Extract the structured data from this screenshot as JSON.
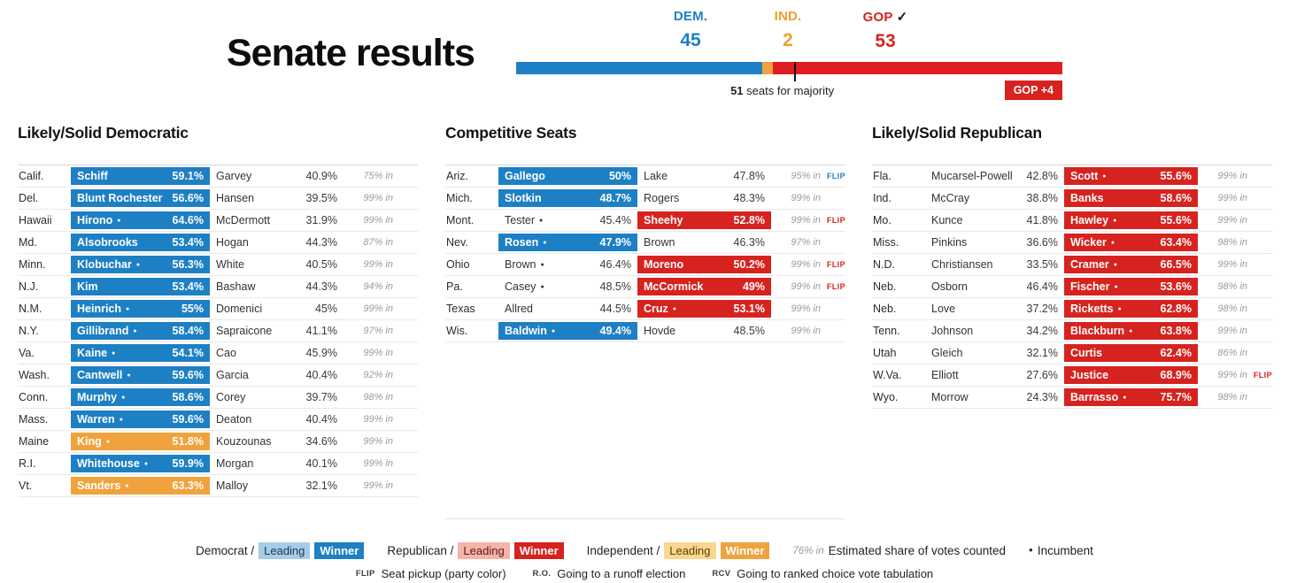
{
  "header": {
    "title": "Senate results",
    "parties": [
      {
        "id": "dem",
        "label": "DEM.",
        "seats": "45"
      },
      {
        "id": "ind",
        "label": "IND.",
        "seats": "2"
      },
      {
        "id": "gop",
        "label": "GOP",
        "seats": "53"
      }
    ],
    "majority": {
      "bold": "51",
      "rest": " seats for majority"
    },
    "net_badge": "GOP +4"
  },
  "icons": {
    "incumbent_dot": "●",
    "winner_check": "✓"
  },
  "colors": {
    "dem": "#1e80c4",
    "ind": "#f0a33c",
    "gop": "#d6231f",
    "dem_light": "#a7cce8",
    "ind_light": "#f9d78e",
    "gop_light": "#f4b4aa"
  },
  "chart_data": {
    "type": "bar",
    "title": "Senate seats by party",
    "categories": [
      "DEM.",
      "IND.",
      "GOP"
    ],
    "values": [
      45,
      2,
      53
    ],
    "majority_threshold": 51,
    "annotations": [
      "51 seats for majority",
      "GOP +4"
    ],
    "colors": {
      "DEM.": "#1e80c4",
      "IND.": "#f0a33c",
      "GOP": "#d6231f"
    }
  },
  "tables": [
    {
      "title": "Likely/Solid Democratic",
      "rows": [
        {
          "state": "Calif.",
          "cands": [
            {
              "name": "Schiff",
              "pct": "59.1%",
              "fill": "dem"
            },
            {
              "name": "Garvey",
              "pct": "40.9%"
            }
          ],
          "reporting": "75% in"
        },
        {
          "state": "Del.",
          "cands": [
            {
              "name": "Blunt Rochester",
              "pct": "56.6%",
              "fill": "dem"
            },
            {
              "name": "Hansen",
              "pct": "39.5%"
            }
          ],
          "reporting": "99% in"
        },
        {
          "state": "Hawaii",
          "cands": [
            {
              "name": "Hirono",
              "inc": true,
              "pct": "64.6%",
              "fill": "dem"
            },
            {
              "name": "McDermott",
              "pct": "31.9%"
            }
          ],
          "reporting": "99% in"
        },
        {
          "state": "Md.",
          "cands": [
            {
              "name": "Alsobrooks",
              "pct": "53.4%",
              "fill": "dem"
            },
            {
              "name": "Hogan",
              "pct": "44.3%"
            }
          ],
          "reporting": "87% in"
        },
        {
          "state": "Minn.",
          "cands": [
            {
              "name": "Klobuchar",
              "inc": true,
              "pct": "56.3%",
              "fill": "dem"
            },
            {
              "name": "White",
              "pct": "40.5%"
            }
          ],
          "reporting": "99% in"
        },
        {
          "state": "N.J.",
          "cands": [
            {
              "name": "Kim",
              "pct": "53.4%",
              "fill": "dem"
            },
            {
              "name": "Bashaw",
              "pct": "44.3%"
            }
          ],
          "reporting": "94% in"
        },
        {
          "state": "N.M.",
          "cands": [
            {
              "name": "Heinrich",
              "inc": true,
              "pct": "55%",
              "fill": "dem"
            },
            {
              "name": "Domenici",
              "pct": "45%"
            }
          ],
          "reporting": "99% in"
        },
        {
          "state": "N.Y.",
          "cands": [
            {
              "name": "Gillibrand",
              "inc": true,
              "pct": "58.4%",
              "fill": "dem"
            },
            {
              "name": "Sapraicone",
              "pct": "41.1%"
            }
          ],
          "reporting": "97% in"
        },
        {
          "state": "Va.",
          "cands": [
            {
              "name": "Kaine",
              "inc": true,
              "pct": "54.1%",
              "fill": "dem"
            },
            {
              "name": "Cao",
              "pct": "45.9%"
            }
          ],
          "reporting": "99% in"
        },
        {
          "state": "Wash.",
          "cands": [
            {
              "name": "Cantwell",
              "inc": true,
              "pct": "59.6%",
              "fill": "dem"
            },
            {
              "name": "Garcia",
              "pct": "40.4%"
            }
          ],
          "reporting": "92% in"
        },
        {
          "state": "Conn.",
          "cands": [
            {
              "name": "Murphy",
              "inc": true,
              "pct": "58.6%",
              "fill": "dem"
            },
            {
              "name": "Corey",
              "pct": "39.7%"
            }
          ],
          "reporting": "98% in"
        },
        {
          "state": "Mass.",
          "cands": [
            {
              "name": "Warren",
              "inc": true,
              "pct": "59.6%",
              "fill": "dem"
            },
            {
              "name": "Deaton",
              "pct": "40.4%"
            }
          ],
          "reporting": "99% in"
        },
        {
          "state": "Maine",
          "cands": [
            {
              "name": "King",
              "inc": true,
              "pct": "51.8%",
              "fill": "ind"
            },
            {
              "name": "Kouzounas",
              "pct": "34.6%"
            }
          ],
          "reporting": "99% in"
        },
        {
          "state": "R.I.",
          "cands": [
            {
              "name": "Whitehouse",
              "inc": true,
              "pct": "59.9%",
              "fill": "dem"
            },
            {
              "name": "Morgan",
              "pct": "40.1%"
            }
          ],
          "reporting": "99% in"
        },
        {
          "state": "Vt.",
          "cands": [
            {
              "name": "Sanders",
              "inc": true,
              "pct": "63.3%",
              "fill": "ind"
            },
            {
              "name": "Malloy",
              "pct": "32.1%"
            }
          ],
          "reporting": "99% in"
        }
      ]
    },
    {
      "title": "Competitive Seats",
      "rows": [
        {
          "state": "Ariz.",
          "cands": [
            {
              "name": "Gallego",
              "pct": "50%",
              "fill": "dem"
            },
            {
              "name": "Lake",
              "pct": "47.8%"
            }
          ],
          "reporting": "95% in",
          "flip": "dem"
        },
        {
          "state": "Mich.",
          "cands": [
            {
              "name": "Slotkin",
              "pct": "48.7%",
              "fill": "dem"
            },
            {
              "name": "Rogers",
              "pct": "48.3%"
            }
          ],
          "reporting": "99% in"
        },
        {
          "state": "Mont.",
          "cands": [
            {
              "name": "Tester",
              "inc": true,
              "pct": "45.4%"
            },
            {
              "name": "Sheehy",
              "pct": "52.8%",
              "fill": "gop"
            }
          ],
          "reporting": "99% in",
          "flip": "gop"
        },
        {
          "state": "Nev.",
          "cands": [
            {
              "name": "Rosen",
              "inc": true,
              "pct": "47.9%",
              "fill": "dem"
            },
            {
              "name": "Brown",
              "pct": "46.3%"
            }
          ],
          "reporting": "97% in"
        },
        {
          "state": "Ohio",
          "cands": [
            {
              "name": "Brown",
              "inc": true,
              "pct": "46.4%"
            },
            {
              "name": "Moreno",
              "pct": "50.2%",
              "fill": "gop"
            }
          ],
          "reporting": "99% in",
          "flip": "gop"
        },
        {
          "state": "Pa.",
          "cands": [
            {
              "name": "Casey",
              "inc": true,
              "pct": "48.5%"
            },
            {
              "name": "McCormick",
              "pct": "49%",
              "fill": "gop"
            }
          ],
          "reporting": "99% in",
          "flip": "gop"
        },
        {
          "state": "Texas",
          "cands": [
            {
              "name": "Allred",
              "pct": "44.5%"
            },
            {
              "name": "Cruz",
              "inc": true,
              "pct": "53.1%",
              "fill": "gop"
            }
          ],
          "reporting": "99% in"
        },
        {
          "state": "Wis.",
          "cands": [
            {
              "name": "Baldwin",
              "inc": true,
              "pct": "49.4%",
              "fill": "dem"
            },
            {
              "name": "Hovde",
              "pct": "48.5%"
            }
          ],
          "reporting": "99% in"
        }
      ]
    },
    {
      "title": "Likely/Solid Republican",
      "rows": [
        {
          "state": "Fla.",
          "cands": [
            {
              "name": "Mucarsel-Powell",
              "pct": "42.8%"
            },
            {
              "name": "Scott",
              "inc": true,
              "pct": "55.6%",
              "fill": "gop"
            }
          ],
          "reporting": "99% in"
        },
        {
          "state": "Ind.",
          "cands": [
            {
              "name": "McCray",
              "pct": "38.8%"
            },
            {
              "name": "Banks",
              "pct": "58.6%",
              "fill": "gop"
            }
          ],
          "reporting": "99% in"
        },
        {
          "state": "Mo.",
          "cands": [
            {
              "name": "Kunce",
              "pct": "41.8%"
            },
            {
              "name": "Hawley",
              "inc": true,
              "pct": "55.6%",
              "fill": "gop"
            }
          ],
          "reporting": "99% in"
        },
        {
          "state": "Miss.",
          "cands": [
            {
              "name": "Pinkins",
              "pct": "36.6%"
            },
            {
              "name": "Wicker",
              "inc": true,
              "pct": "63.4%",
              "fill": "gop"
            }
          ],
          "reporting": "98% in"
        },
        {
          "state": "N.D.",
          "cands": [
            {
              "name": "Christiansen",
              "pct": "33.5%"
            },
            {
              "name": "Cramer",
              "inc": true,
              "pct": "66.5%",
              "fill": "gop"
            }
          ],
          "reporting": "99% in"
        },
        {
          "state": "Neb.",
          "cands": [
            {
              "name": "Osborn",
              "pct": "46.4%"
            },
            {
              "name": "Fischer",
              "inc": true,
              "pct": "53.6%",
              "fill": "gop"
            }
          ],
          "reporting": "98% in"
        },
        {
          "state": "Neb.",
          "cands": [
            {
              "name": "Love",
              "pct": "37.2%"
            },
            {
              "name": "Ricketts",
              "inc": true,
              "pct": "62.8%",
              "fill": "gop"
            }
          ],
          "reporting": "98% in"
        },
        {
          "state": "Tenn.",
          "cands": [
            {
              "name": "Johnson",
              "pct": "34.2%"
            },
            {
              "name": "Blackburn",
              "inc": true,
              "pct": "63.8%",
              "fill": "gop"
            }
          ],
          "reporting": "99% in"
        },
        {
          "state": "Utah",
          "cands": [
            {
              "name": "Gleich",
              "pct": "32.1%"
            },
            {
              "name": "Curtis",
              "pct": "62.4%",
              "fill": "gop"
            }
          ],
          "reporting": "86% in"
        },
        {
          "state": "W.Va.",
          "cands": [
            {
              "name": "Elliott",
              "pct": "27.6%"
            },
            {
              "name": "Justice",
              "pct": "68.9%",
              "fill": "gop"
            }
          ],
          "reporting": "99% in",
          "flip": "gop"
        },
        {
          "state": "Wyo.",
          "cands": [
            {
              "name": "Morrow",
              "pct": "24.3%"
            },
            {
              "name": "Barrasso",
              "inc": true,
              "pct": "75.7%",
              "fill": "gop"
            }
          ],
          "reporting": "98% in"
        }
      ]
    }
  ],
  "legend": {
    "leading_label": "Leading",
    "winner_label": "Winner",
    "party_prefixes": [
      "Democrat /",
      "Republican /",
      "Independent /"
    ],
    "reporting_example": "76% in",
    "reporting_desc": "Estimated share of votes counted",
    "incumbent_label": "Incumbent",
    "notes": [
      {
        "tag": "FLIP",
        "label": "Seat pickup (party color)"
      },
      {
        "tag": "R.O.",
        "label": "Going to a runoff election"
      },
      {
        "tag": "RCV",
        "label": "Going to ranked choice vote tabulation"
      }
    ]
  }
}
